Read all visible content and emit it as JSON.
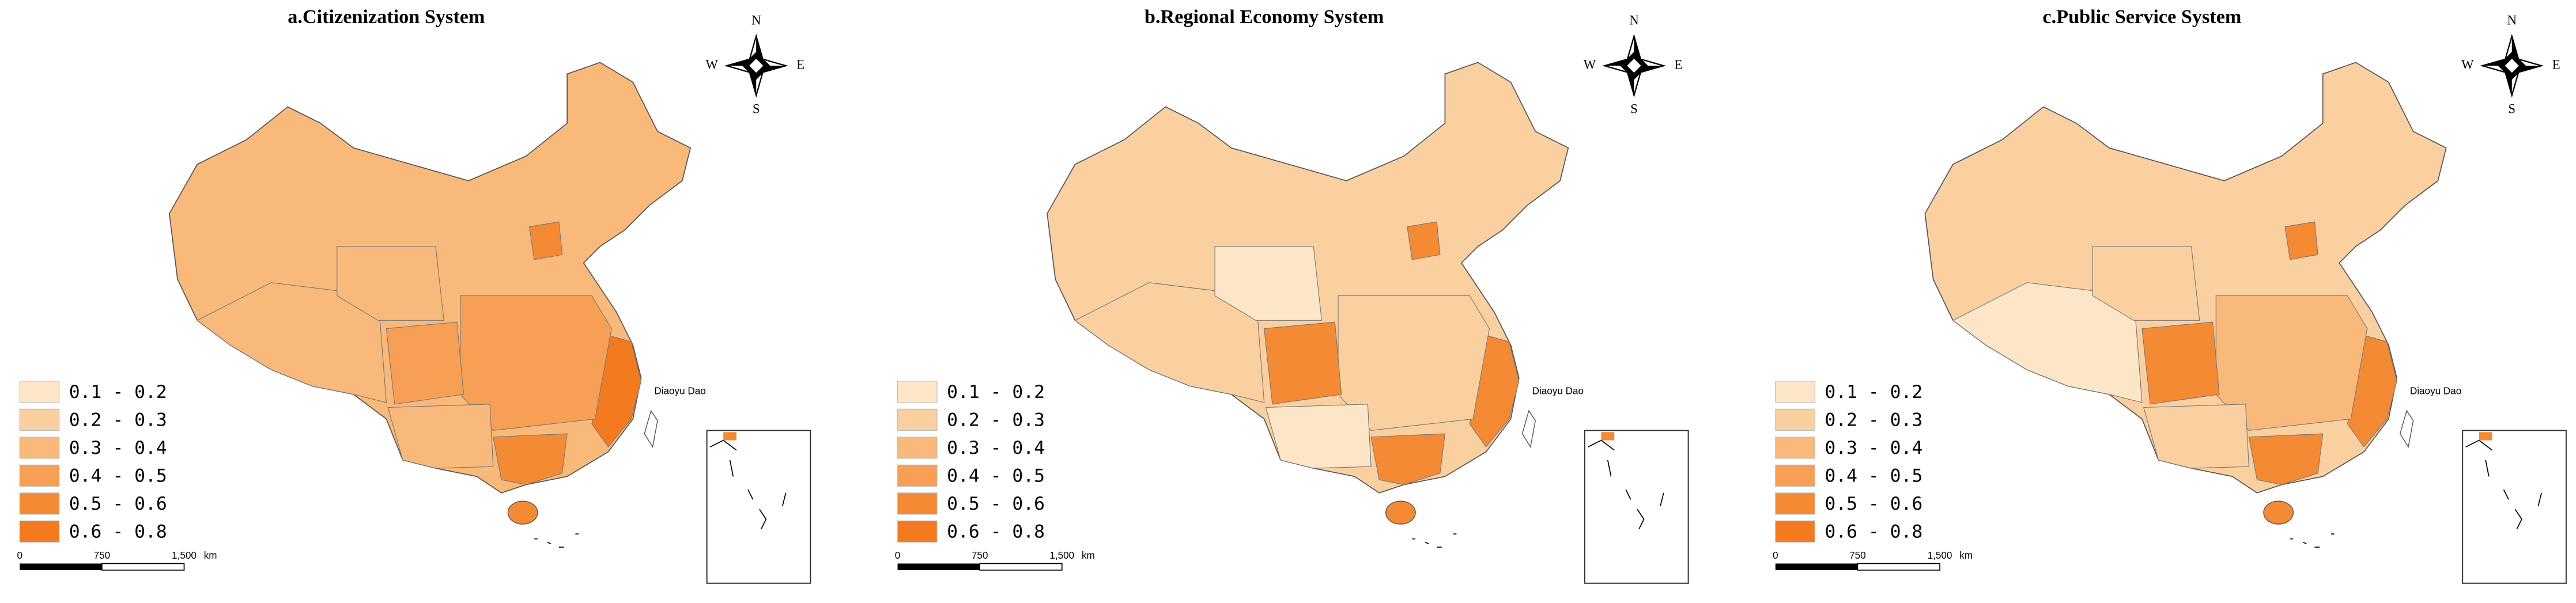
{
  "panels": [
    {
      "title": "a.Citizenization System",
      "base": 2,
      "patches": {
        "east": 5,
        "central": 3,
        "sichuan": 3,
        "guangdong": 4,
        "beijing": 4,
        "tibet": 2,
        "qinghai": 2,
        "southwest": 2
      }
    },
    {
      "title": "b.Regional Economy System",
      "base": 1,
      "patches": {
        "east": 4,
        "central": 1,
        "sichuan": 4,
        "guangdong": 4,
        "beijing": 4,
        "tibet": 1,
        "qinghai": 0,
        "southwest": 0
      }
    },
    {
      "title": "c.Public Service System",
      "base": 1,
      "patches": {
        "east": 4,
        "central": 2,
        "sichuan": 4,
        "guangdong": 4,
        "beijing": 4,
        "tibet": 0,
        "qinghai": 1,
        "southwest": 1
      }
    }
  ],
  "legend": [
    {
      "label": "0.1 - 0.2",
      "color": "#fde6c8"
    },
    {
      "label": "0.2 - 0.3",
      "color": "#fbd0a0"
    },
    {
      "label": "0.3 - 0.4",
      "color": "#f9b97a"
    },
    {
      "label": "0.4 - 0.5",
      "color": "#f7a055"
    },
    {
      "label": "0.5 - 0.6",
      "color": "#f58a35"
    },
    {
      "label": "0.6 - 0.8",
      "color": "#f47a1f"
    }
  ],
  "scale_bar": [
    "0",
    "750",
    "1,500",
    "km"
  ],
  "compass": {
    "N": "N",
    "S": "S",
    "W": "W",
    "E": "E"
  },
  "annotation": "Diaoyu Dao"
}
